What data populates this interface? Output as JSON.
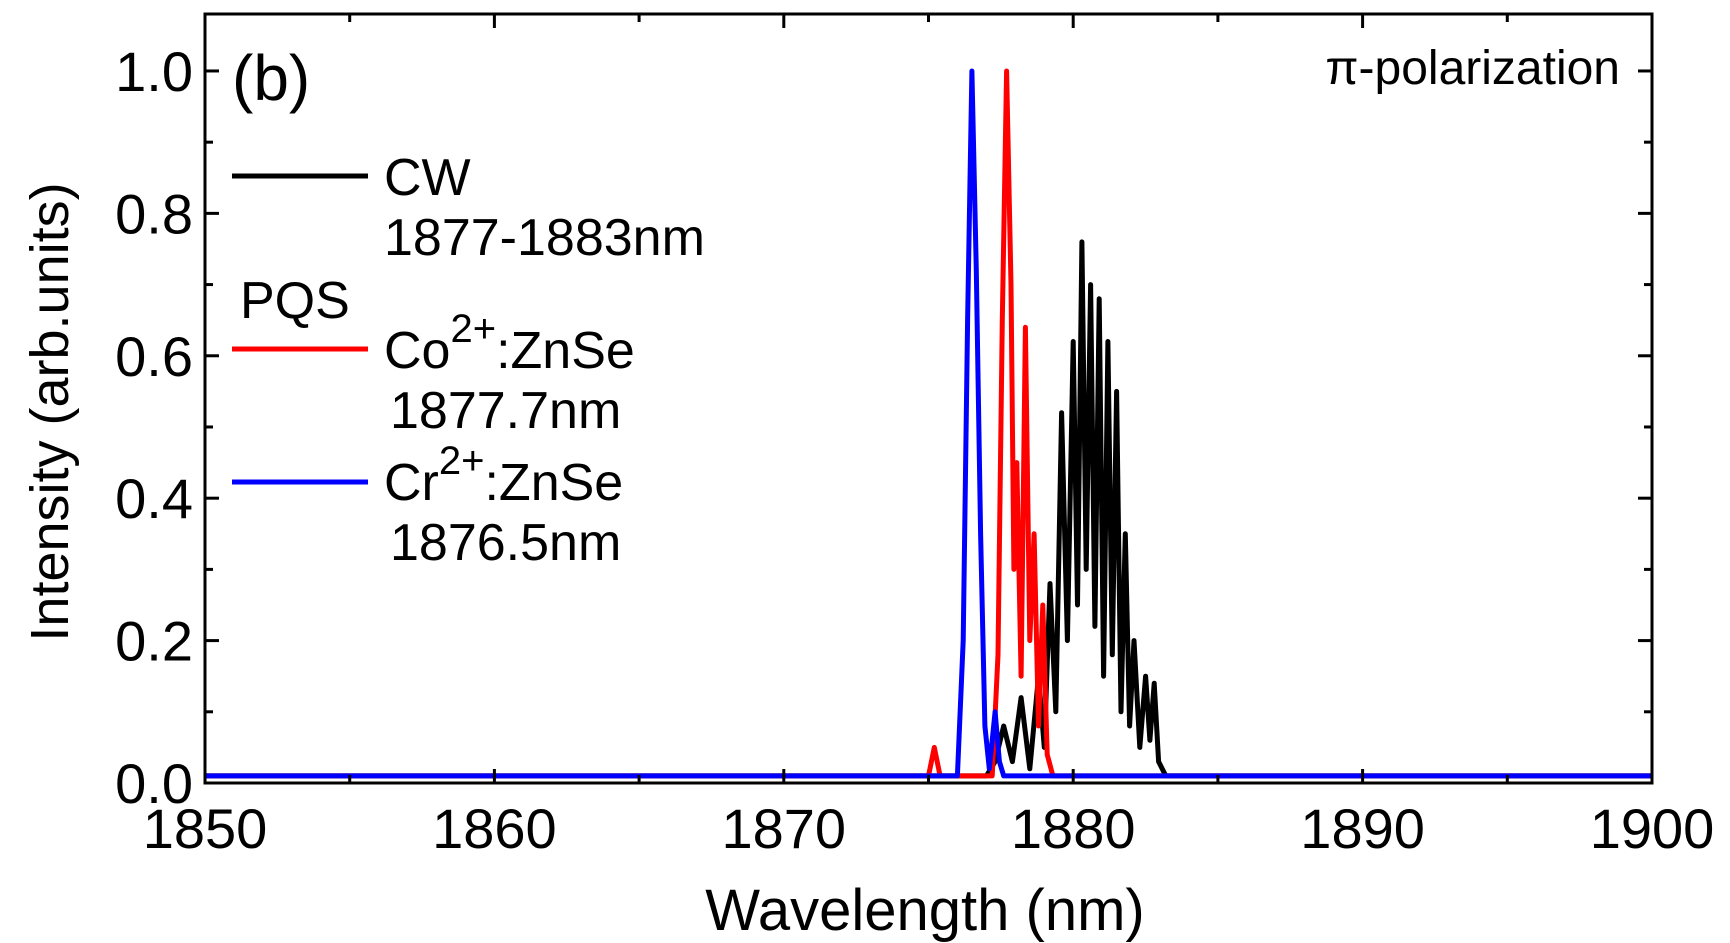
{
  "chart_data": {
    "type": "line",
    "panel_label": "(b)",
    "annotation": "π-polarization",
    "xlabel": "Wavelength (nm)",
    "ylabel": "Intensity (arb.units)",
    "xlim": [
      1850,
      1900
    ],
    "ylim": [
      0,
      1.08
    ],
    "xticks": [
      1850,
      1860,
      1870,
      1880,
      1890,
      1900
    ],
    "xtick_labels": [
      "1850",
      "1860",
      "1870",
      "1880",
      "1890",
      "1900"
    ],
    "yticks": [
      0.0,
      0.2,
      0.4,
      0.6,
      0.8,
      1.0
    ],
    "ytick_labels": [
      "0.0",
      "0.2",
      "0.4",
      "0.6",
      "0.8",
      "1.0"
    ],
    "grid": false,
    "legend_placement": "top-left",
    "legend_group_label": "PQS",
    "series": [
      {
        "name": "CW",
        "legend_label_base": "CW",
        "legend_label_sup": "",
        "legend_label_tail": "",
        "legend_sublabel": "1877-1883nm",
        "color": "#000000",
        "points": [
          [
            1850,
            0.01
          ],
          [
            1877.0,
            0.01
          ],
          [
            1877.3,
            0.03
          ],
          [
            1877.6,
            0.08
          ],
          [
            1877.9,
            0.03
          ],
          [
            1878.2,
            0.12
          ],
          [
            1878.5,
            0.02
          ],
          [
            1878.8,
            0.15
          ],
          [
            1879.0,
            0.05
          ],
          [
            1879.2,
            0.28
          ],
          [
            1879.4,
            0.1
          ],
          [
            1879.6,
            0.52
          ],
          [
            1879.8,
            0.2
          ],
          [
            1880.0,
            0.62
          ],
          [
            1880.15,
            0.25
          ],
          [
            1880.3,
            0.76
          ],
          [
            1880.45,
            0.3
          ],
          [
            1880.6,
            0.7
          ],
          [
            1880.75,
            0.22
          ],
          [
            1880.9,
            0.68
          ],
          [
            1881.05,
            0.15
          ],
          [
            1881.2,
            0.62
          ],
          [
            1881.35,
            0.18
          ],
          [
            1881.5,
            0.55
          ],
          [
            1881.65,
            0.1
          ],
          [
            1881.8,
            0.35
          ],
          [
            1881.95,
            0.08
          ],
          [
            1882.1,
            0.2
          ],
          [
            1882.3,
            0.05
          ],
          [
            1882.5,
            0.15
          ],
          [
            1882.65,
            0.06
          ],
          [
            1882.8,
            0.14
          ],
          [
            1882.95,
            0.03
          ],
          [
            1883.2,
            0.01
          ],
          [
            1900,
            0.01
          ]
        ]
      },
      {
        "name": "Co2+:ZnSe",
        "legend_label_base": "Co",
        "legend_label_sup": "2+",
        "legend_label_tail": ":ZnSe",
        "legend_sublabel": "1877.7nm",
        "color": "#ff0000",
        "points": [
          [
            1850,
            0.01
          ],
          [
            1875.0,
            0.01
          ],
          [
            1875.2,
            0.05
          ],
          [
            1875.4,
            0.01
          ],
          [
            1877.2,
            0.01
          ],
          [
            1877.4,
            0.18
          ],
          [
            1877.55,
            0.65
          ],
          [
            1877.7,
            1.0
          ],
          [
            1877.85,
            0.7
          ],
          [
            1877.95,
            0.3
          ],
          [
            1878.05,
            0.45
          ],
          [
            1878.2,
            0.15
          ],
          [
            1878.35,
            0.64
          ],
          [
            1878.5,
            0.2
          ],
          [
            1878.65,
            0.35
          ],
          [
            1878.8,
            0.08
          ],
          [
            1878.95,
            0.25
          ],
          [
            1879.1,
            0.04
          ],
          [
            1879.3,
            0.01
          ],
          [
            1900,
            0.01
          ]
        ]
      },
      {
        "name": "Cr2+:ZnSe",
        "legend_label_base": "Cr",
        "legend_label_sup": "2+",
        "legend_label_tail": ":ZnSe",
        "legend_sublabel": "1876.5nm",
        "color": "#0000ff",
        "points": [
          [
            1850,
            0.01
          ],
          [
            1876.0,
            0.01
          ],
          [
            1876.2,
            0.2
          ],
          [
            1876.35,
            0.65
          ],
          [
            1876.5,
            1.0
          ],
          [
            1876.65,
            0.72
          ],
          [
            1876.8,
            0.35
          ],
          [
            1876.95,
            0.08
          ],
          [
            1877.1,
            0.02
          ],
          [
            1877.3,
            0.1
          ],
          [
            1877.45,
            0.03
          ],
          [
            1877.6,
            0.01
          ],
          [
            1900,
            0.01
          ]
        ]
      }
    ]
  }
}
